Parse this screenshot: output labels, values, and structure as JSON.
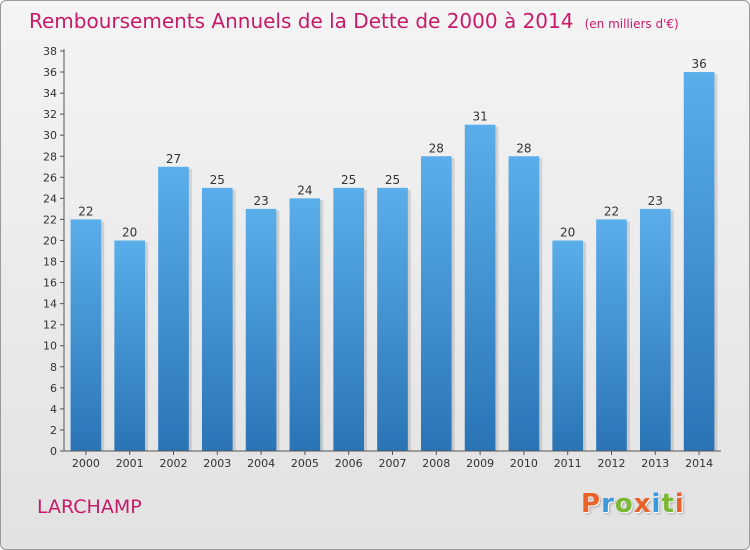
{
  "chart_data": {
    "type": "bar",
    "title": "Remboursements Annuels de la Dette de 2000 à 2014",
    "subtitle": "(en milliers d'€)",
    "categories": [
      "2000",
      "2001",
      "2002",
      "2003",
      "2004",
      "2005",
      "2006",
      "2007",
      "2008",
      "2009",
      "2010",
      "2011",
      "2012",
      "2013",
      "2014"
    ],
    "values": [
      22,
      20,
      27,
      25,
      23,
      24,
      25,
      25,
      28,
      31,
      28,
      20,
      22,
      23,
      36
    ],
    "ylim": [
      0,
      38
    ],
    "ytick_step": 2,
    "xlabel": "",
    "ylabel": "",
    "grid": false
  },
  "footer": {
    "town": "LARCHAMP",
    "brand": "Proxiti"
  },
  "colors": {
    "title": "#c81a6a",
    "bar_light": "#5aaeea",
    "bar_dark": "#2a74b6",
    "brand_letters": [
      "#e8622a",
      "#3a9ad9",
      "#7ab834",
      "#e8622a",
      "#3a9ad9",
      "#7ab834",
      "#e8622a"
    ]
  }
}
